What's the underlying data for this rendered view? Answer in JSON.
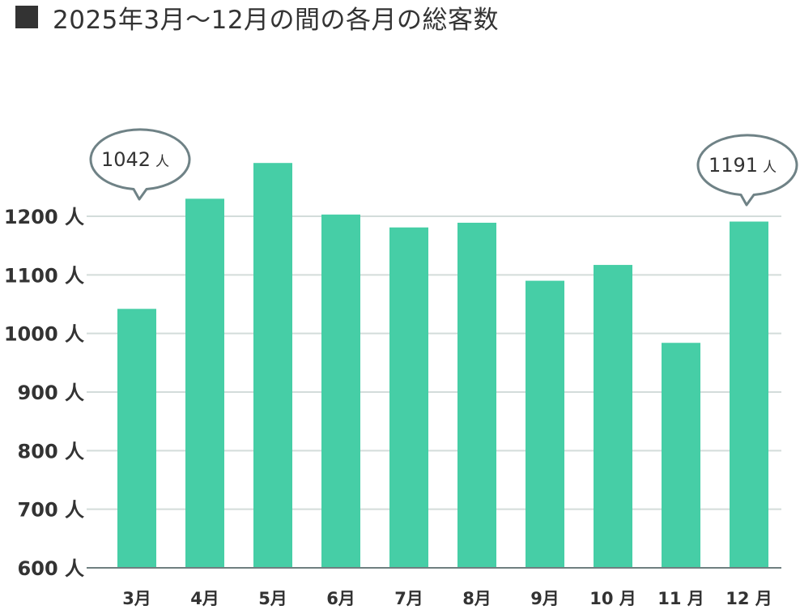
{
  "title": {
    "marker": "■",
    "text": "2025年3月〜12月の間の各月の総客数"
  },
  "colors": {
    "bar": "#46cea6",
    "grid": "#d3dcda",
    "axis": "#6f7f80",
    "bubble_stroke": "#6f8286",
    "text": "#333333"
  },
  "chart_data": {
    "type": "bar",
    "title": "2025年3月〜12月の間の各月の総客数",
    "xlabel": "",
    "ylabel": "",
    "categories": [
      "3月",
      "4月",
      "5月",
      "6月",
      "7月",
      "8月",
      "9月",
      "10月",
      "11月",
      "12月"
    ],
    "values": [
      1042,
      1230,
      1291,
      1203,
      1181,
      1189,
      1090,
      1117,
      984,
      1191
    ],
    "ylim": [
      600,
      1300
    ],
    "yticks": [
      600,
      700,
      800,
      900,
      1000,
      1100,
      1200
    ],
    "ytick_labels": [
      "600 人",
      "700 人",
      "800 人",
      "900 人",
      "1000 人",
      "1100 人",
      "1200 人"
    ],
    "xtick_labels": [
      "3月",
      "4月",
      "5月",
      "6月",
      "7月",
      "8月",
      "9月",
      "10 月",
      "11 月",
      "12 月"
    ],
    "grid": true,
    "legend": null,
    "annotations": [
      {
        "category": "3月",
        "value_text": "1042",
        "unit": "人"
      },
      {
        "category": "12月",
        "value_text": "1191",
        "unit": "人"
      }
    ]
  }
}
